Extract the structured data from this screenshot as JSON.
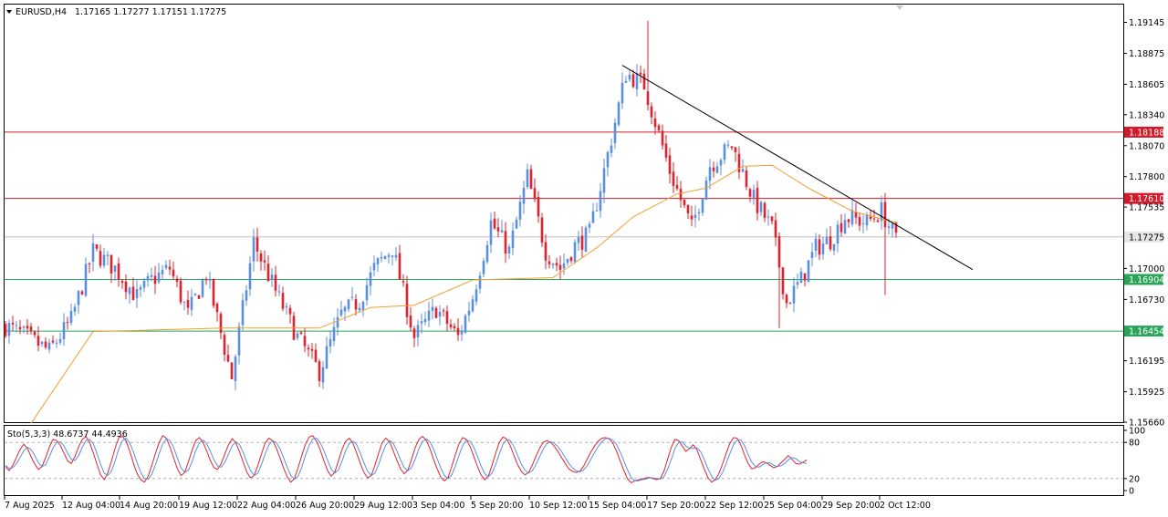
{
  "header": {
    "symbol": "EURUSD,H4",
    "ohlc": "1.17165 1.17277 1.17151 1.17275"
  },
  "colors": {
    "bull": "#5b8fe0",
    "bear": "#e0232e",
    "ma": "#f0a030",
    "resistance": "#d11b2a",
    "support": "#2aa55a",
    "trend": "#000000",
    "price_line": "#c0c0c0",
    "stoch_main": "#e0232e",
    "stoch_signal": "#5b8fe0"
  },
  "chart_data": [
    {
      "type": "candlestick",
      "symbol": "EURUSD",
      "timeframe": "H4",
      "last_price": "1.17275",
      "ylim": [
        1.1566,
        1.193
      ],
      "y_ticks": [
        "1.19145",
        "1.18875",
        "1.18605",
        "1.18340",
        "1.18070",
        "1.17800",
        "1.17535",
        "1.17000",
        "1.16730",
        "1.16195",
        "1.15925",
        "1.15660"
      ],
      "x_ticks": [
        "7 Aug 2025",
        "12 Aug 04:00",
        "14 Aug 20:00",
        "19 Aug 12:00",
        "22 Aug 04:00",
        "26 Aug 20:00",
        "29 Aug 12:00",
        "3 Sep 04:00",
        "5 Sep 20:00",
        "10 Sep 12:00",
        "15 Sep 04:00",
        "17 Sep 20:00",
        "22 Sep 12:00",
        "25 Sep 04:00",
        "29 Sep 20:00",
        "2 Oct 12:00"
      ],
      "horizontal_levels": [
        {
          "price": "1.18188",
          "kind": "resistance"
        },
        {
          "price": "1.17610",
          "kind": "resistance"
        },
        {
          "price": "1.16904",
          "kind": "support"
        },
        {
          "price": "1.16454",
          "kind": "support"
        }
      ],
      "trendline": {
        "from": {
          "bar": 169,
          "price": 1.1877
        },
        "to": {
          "bar": 265,
          "price": 1.1699
        }
      },
      "price_path": [
        [
          0,
          1.165
        ],
        [
          6,
          1.164
        ],
        [
          12,
          1.1628
        ],
        [
          18,
          1.1655
        ],
        [
          24,
          1.1715
        ],
        [
          30,
          1.17
        ],
        [
          36,
          1.1675
        ],
        [
          40,
          1.169
        ],
        [
          45,
          1.17
        ],
        [
          50,
          1.166
        ],
        [
          55,
          1.1695
        ],
        [
          62,
          1.1605
        ],
        [
          68,
          1.1723
        ],
        [
          74,
          1.168
        ],
        [
          80,
          1.164
        ],
        [
          86,
          1.161
        ],
        [
          92,
          1.166
        ],
        [
          97,
          1.1672
        ],
        [
          101,
          1.17
        ],
        [
          106,
          1.1718
        ],
        [
          112,
          1.164
        ],
        [
          118,
          1.1665
        ],
        [
          124,
          1.164
        ],
        [
          128,
          1.1675
        ],
        [
          133,
          1.174
        ],
        [
          138,
          1.1715
        ],
        [
          143,
          1.178
        ],
        [
          148,
          1.1715
        ],
        [
          152,
          1.17
        ],
        [
          156,
          1.172
        ],
        [
          160,
          1.173
        ],
        [
          164,
          1.1785
        ],
        [
          170,
          1.187
        ],
        [
          175,
          1.186
        ],
        [
          182,
          1.1785
        ],
        [
          188,
          1.1735
        ],
        [
          193,
          1.179
        ],
        [
          199,
          1.1807
        ],
        [
          205,
          1.176
        ],
        [
          210,
          1.1735
        ],
        [
          214,
          1.167
        ],
        [
          218,
          1.169
        ],
        [
          222,
          1.1718
        ],
        [
          226,
          1.1725
        ],
        [
          230,
          1.1745
        ],
        [
          236,
          1.174
        ],
        [
          240,
          1.175
        ],
        [
          244,
          1.1725
        ]
      ],
      "moving_average": [
        [
          7,
          1.1565
        ],
        [
          24,
          1.1645
        ],
        [
          60,
          1.1648
        ],
        [
          86,
          1.1648
        ],
        [
          100,
          1.1666
        ],
        [
          112,
          1.1668
        ],
        [
          128,
          1.169
        ],
        [
          150,
          1.1692
        ],
        [
          162,
          1.1718
        ],
        [
          172,
          1.1745
        ],
        [
          184,
          1.1765
        ],
        [
          192,
          1.177
        ],
        [
          202,
          1.1789
        ],
        [
          210,
          1.179
        ],
        [
          220,
          1.177
        ],
        [
          232,
          1.175
        ],
        [
          244,
          1.174
        ]
      ]
    },
    {
      "type": "line",
      "name": "Sto(5,3,3) 48.6737 44.4936",
      "ylim": [
        0,
        100
      ],
      "y_ticks": [
        "100",
        "80",
        "20",
        "0"
      ],
      "levels": [
        80,
        20
      ],
      "series": [
        {
          "name": "%K",
          "values": [
            40,
            33,
            42,
            55,
            68,
            77,
            70,
            56,
            44,
            35,
            40,
            55,
            72,
            85,
            83,
            75,
            62,
            49,
            45,
            57,
            73,
            85,
            90,
            80,
            63,
            44,
            26,
            18,
            30,
            50,
            71,
            88,
            90,
            82,
            65,
            45,
            28,
            18,
            14,
            24,
            42,
            62,
            80,
            91,
            87,
            72,
            54,
            36,
            25,
            30,
            48,
            67,
            83,
            88,
            80,
            66,
            50,
            38,
            35,
            45,
            61,
            77,
            86,
            79,
            64,
            47,
            30,
            21,
            25,
            42,
            61,
            79,
            87,
            83,
            71,
            55,
            38,
            23,
            14,
            20,
            38,
            58,
            77,
            89,
            91,
            82,
            68,
            50,
            34,
            24,
            30,
            49,
            68,
            82,
            87,
            78,
            62,
            45,
            30,
            21,
            25,
            42,
            62,
            80,
            87,
            81,
            66,
            50,
            36,
            28,
            34,
            52,
            71,
            85,
            90,
            84,
            70,
            52,
            36,
            22,
            16,
            22,
            40,
            60,
            78,
            88,
            85,
            73,
            57,
            40,
            26,
            18,
            24,
            42,
            62,
            80,
            89,
            86,
            74,
            58,
            43,
            32,
            26,
            30,
            42,
            57,
            70,
            80,
            83,
            80,
            74,
            65,
            55,
            45,
            36,
            32,
            30,
            32,
            40,
            52,
            64,
            74,
            82,
            87,
            88,
            86,
            79,
            66,
            50,
            34,
            20,
            13,
            16,
            18,
            19,
            21,
            22,
            20,
            18,
            20,
            32,
            52,
            72,
            85,
            83,
            74,
            65,
            70,
            76,
            68,
            52,
            36,
            22,
            14,
            18,
            28,
            44,
            62,
            78,
            88,
            87,
            76,
            60,
            45,
            36,
            38,
            44,
            48,
            46,
            42,
            38,
            40,
            46,
            52,
            58,
            52,
            45,
            44,
            47,
            51
          ]
        },
        {
          "name": "%D",
          "values": [
            42,
            37,
            38,
            45,
            55,
            66,
            72,
            68,
            58,
            46,
            40,
            43,
            56,
            71,
            80,
            81,
            74,
            62,
            52,
            50,
            58,
            72,
            83,
            85,
            78,
            62,
            44,
            29,
            25,
            33,
            50,
            70,
            83,
            87,
            79,
            64,
            46,
            30,
            20,
            19,
            27,
            43,
            61,
            78,
            86,
            83,
            71,
            54,
            38,
            30,
            34,
            48,
            66,
            79,
            84,
            78,
            65,
            51,
            41,
            39,
            47,
            61,
            75,
            81,
            76,
            63,
            47,
            33,
            25,
            29,
            43,
            61,
            76,
            83,
            80,
            70,
            55,
            39,
            25,
            19,
            24,
            39,
            58,
            75,
            86,
            87,
            80,
            67,
            51,
            36,
            29,
            34,
            49,
            66,
            79,
            82,
            76,
            62,
            46,
            32,
            25,
            29,
            43,
            61,
            76,
            83,
            78,
            66,
            51,
            38,
            33,
            38,
            52,
            69,
            82,
            86,
            81,
            69,
            53,
            37,
            25,
            20,
            26,
            41,
            59,
            75,
            84,
            82,
            72,
            57,
            41,
            28,
            23,
            29,
            43,
            61,
            77,
            85,
            83,
            73,
            58,
            44,
            34,
            29,
            33,
            43,
            56,
            69,
            78,
            81,
            79,
            73,
            65,
            55,
            45,
            38,
            33,
            31,
            34,
            41,
            52,
            63,
            73,
            81,
            86,
            87,
            84,
            77,
            65,
            50,
            35,
            22,
            16,
            16,
            18,
            19,
            21,
            21,
            20,
            19,
            23,
            35,
            52,
            70,
            80,
            81,
            74,
            70,
            70,
            71,
            65,
            52,
            37,
            24,
            17,
            20,
            30,
            45,
            61,
            76,
            84,
            84,
            75,
            60,
            47,
            40,
            39,
            43,
            46,
            46,
            42,
            40,
            41,
            45,
            51,
            55,
            53,
            48,
            46,
            45
          ]
        }
      ]
    }
  ]
}
